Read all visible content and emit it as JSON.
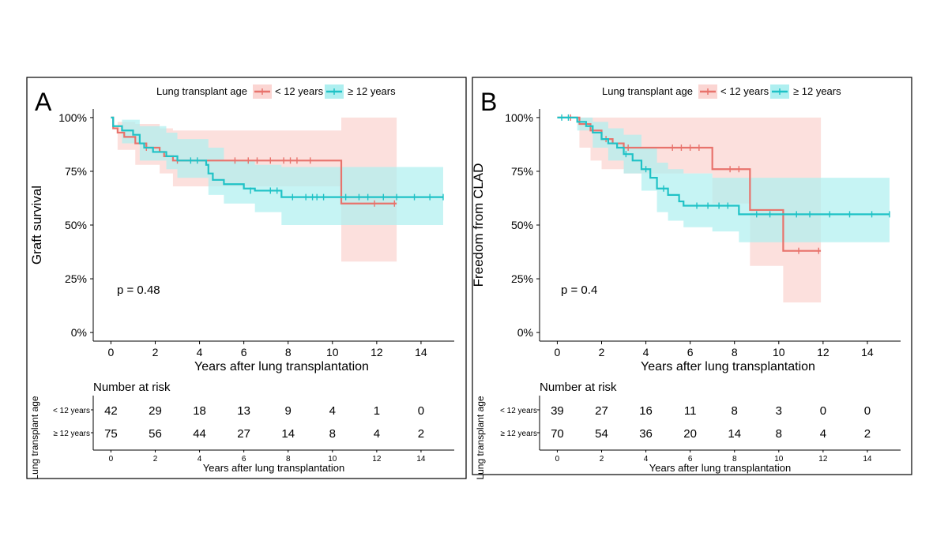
{
  "colors": {
    "lt12": "#e8736c",
    "lt12_band": "#fbd5d2",
    "ge12": "#1fc2c6",
    "ge12_band": "#aeeff0",
    "axis": "#000000"
  },
  "chart_data": [
    {
      "panel_label": "A",
      "type": "line",
      "subtype": "kaplan-meier",
      "legend_title": "Lung transplant age",
      "legend": [
        "< 12 years",
        "≥ 12 years"
      ],
      "ylabel": "Graft survival",
      "xlabel": "Years after lung transplantation",
      "xlim": [
        -0.8,
        15.5
      ],
      "ylim": [
        -0.04,
        1.04
      ],
      "xticks": [
        "0",
        "2",
        "4",
        "6",
        "8",
        "10",
        "12",
        "14"
      ],
      "xtick_values": [
        0,
        2,
        4,
        6,
        8,
        10,
        12,
        14
      ],
      "yticks": [
        "0%",
        "25%",
        "50%",
        "75%",
        "100%"
      ],
      "ytick_values": [
        0,
        0.25,
        0.5,
        0.75,
        1
      ],
      "pvalue": "p = 0.48",
      "series": [
        {
          "name": "< 12 years",
          "steps": [
            [
              0,
              1.0
            ],
            [
              0.1,
              0.95
            ],
            [
              0.3,
              0.93
            ],
            [
              0.6,
              0.91
            ],
            [
              1.1,
              0.88
            ],
            [
              1.6,
              0.86
            ],
            [
              2.2,
              0.84
            ],
            [
              2.4,
              0.82
            ],
            [
              2.8,
              0.8
            ],
            [
              10.4,
              0.6
            ],
            [
              12.9,
              0.6
            ]
          ],
          "censors": [
            [
              1.6,
              0.86
            ],
            [
              3.0,
              0.8
            ],
            [
              5.6,
              0.8
            ],
            [
              6.2,
              0.8
            ],
            [
              6.6,
              0.8
            ],
            [
              7.2,
              0.8
            ],
            [
              7.8,
              0.8
            ],
            [
              8.1,
              0.8
            ],
            [
              8.4,
              0.8
            ],
            [
              9.0,
              0.8
            ],
            [
              11.9,
              0.6
            ],
            [
              12.8,
              0.6
            ]
          ],
          "band": [
            [
              0,
              1.0,
              1.0
            ],
            [
              0.3,
              0.98,
              0.85
            ],
            [
              1.1,
              0.97,
              0.78
            ],
            [
              2.2,
              0.95,
              0.74
            ],
            [
              2.8,
              0.94,
              0.68
            ],
            [
              4.0,
              0.94,
              0.68
            ],
            [
              10.4,
              1.0,
              0.33
            ],
            [
              12.9,
              1.0,
              0.33
            ]
          ]
        },
        {
          "name": "≥ 12 years",
          "steps": [
            [
              0,
              1.0
            ],
            [
              0.1,
              0.96
            ],
            [
              0.5,
              0.94
            ],
            [
              1.0,
              0.92
            ],
            [
              1.3,
              0.88
            ],
            [
              1.5,
              0.86
            ],
            [
              1.9,
              0.84
            ],
            [
              2.5,
              0.82
            ],
            [
              3.0,
              0.8
            ],
            [
              4.3,
              0.78
            ],
            [
              4.4,
              0.74
            ],
            [
              4.6,
              0.71
            ],
            [
              5.1,
              0.69
            ],
            [
              6.0,
              0.67
            ],
            [
              6.5,
              0.66
            ],
            [
              7.7,
              0.63
            ],
            [
              15.0,
              0.63
            ]
          ],
          "censors": [
            [
              3.6,
              0.8
            ],
            [
              3.9,
              0.8
            ],
            [
              6.3,
              0.66
            ],
            [
              7.2,
              0.66
            ],
            [
              7.5,
              0.66
            ],
            [
              8.2,
              0.63
            ],
            [
              8.8,
              0.63
            ],
            [
              9.1,
              0.63
            ],
            [
              9.3,
              0.63
            ],
            [
              9.6,
              0.63
            ],
            [
              10.6,
              0.63
            ],
            [
              11.2,
              0.63
            ],
            [
              11.6,
              0.63
            ],
            [
              12.3,
              0.63
            ],
            [
              12.9,
              0.63
            ],
            [
              13.7,
              0.63
            ],
            [
              14.4,
              0.63
            ],
            [
              15.0,
              0.63
            ]
          ],
          "band": [
            [
              0,
              1.0,
              1.0
            ],
            [
              0.5,
              0.99,
              0.88
            ],
            [
              1.3,
              0.96,
              0.8
            ],
            [
              2.5,
              0.93,
              0.76
            ],
            [
              3.0,
              0.9,
              0.72
            ],
            [
              4.4,
              0.86,
              0.64
            ],
            [
              5.1,
              0.8,
              0.6
            ],
            [
              6.5,
              0.78,
              0.56
            ],
            [
              7.7,
              0.77,
              0.5
            ],
            [
              15.0,
              0.77,
              0.5
            ]
          ]
        }
      ],
      "risk_table": {
        "title": "Number at risk",
        "ylabel": "Lung transplant age",
        "xlabel": "Years after lung transplantation",
        "rows": [
          {
            "label": "< 12 years",
            "values": [
              "42",
              "29",
              "18",
              "13",
              "9",
              "4",
              "1",
              "0"
            ]
          },
          {
            "label": "≥ 12 years",
            "values": [
              "75",
              "56",
              "44",
              "27",
              "14",
              "8",
              "4",
              "2"
            ]
          }
        ]
      }
    },
    {
      "panel_label": "B",
      "type": "line",
      "subtype": "kaplan-meier",
      "legend_title": "Lung transplant age",
      "legend": [
        "< 12 years",
        "≥ 12 years"
      ],
      "ylabel": "Freedom from CLAD",
      "xlabel": "Years after lung transplantation",
      "xlim": [
        -0.8,
        15.5
      ],
      "ylim": [
        -0.04,
        1.04
      ],
      "xticks": [
        "0",
        "2",
        "4",
        "6",
        "8",
        "10",
        "12",
        "14"
      ],
      "xtick_values": [
        0,
        2,
        4,
        6,
        8,
        10,
        12,
        14
      ],
      "yticks": [
        "0%",
        "25%",
        "50%",
        "75%",
        "100%"
      ],
      "ytick_values": [
        0,
        0.25,
        0.5,
        0.75,
        1
      ],
      "pvalue": "p = 0.4",
      "series": [
        {
          "name": "< 12 years",
          "steps": [
            [
              0,
              1.0
            ],
            [
              1.0,
              0.97
            ],
            [
              1.5,
              0.94
            ],
            [
              2.0,
              0.9
            ],
            [
              2.5,
              0.88
            ],
            [
              3.0,
              0.86
            ],
            [
              7.0,
              0.76
            ],
            [
              8.7,
              0.57
            ],
            [
              10.2,
              0.38
            ],
            [
              11.9,
              0.38
            ]
          ],
          "censors": [
            [
              0.6,
              1.0
            ],
            [
              2.2,
              0.9
            ],
            [
              3.2,
              0.86
            ],
            [
              5.2,
              0.86
            ],
            [
              5.6,
              0.86
            ],
            [
              6.0,
              0.86
            ],
            [
              6.4,
              0.86
            ],
            [
              7.8,
              0.76
            ],
            [
              8.2,
              0.76
            ],
            [
              10.9,
              0.38
            ],
            [
              11.8,
              0.38
            ]
          ],
          "band": [
            [
              0,
              1.0,
              1.0
            ],
            [
              1.0,
              1.0,
              0.86
            ],
            [
              1.5,
              1.0,
              0.8
            ],
            [
              2.0,
              1.0,
              0.76
            ],
            [
              3.0,
              1.0,
              0.74
            ],
            [
              7.0,
              1.0,
              0.6
            ],
            [
              8.7,
              1.0,
              0.31
            ],
            [
              10.2,
              1.0,
              0.14
            ],
            [
              11.9,
              1.0,
              0.14
            ]
          ]
        },
        {
          "name": "≥ 12 years",
          "steps": [
            [
              0,
              1.0
            ],
            [
              0.9,
              0.98
            ],
            [
              1.3,
              0.96
            ],
            [
              1.6,
              0.93
            ],
            [
              2.0,
              0.9
            ],
            [
              2.3,
              0.88
            ],
            [
              2.7,
              0.86
            ],
            [
              3.0,
              0.83
            ],
            [
              3.4,
              0.8
            ],
            [
              3.8,
              0.76
            ],
            [
              4.2,
              0.72
            ],
            [
              4.5,
              0.67
            ],
            [
              5.0,
              0.64
            ],
            [
              5.5,
              0.61
            ],
            [
              5.7,
              0.59
            ],
            [
              8.2,
              0.55
            ],
            [
              15.0,
              0.55
            ]
          ],
          "censors": [
            [
              0.2,
              1.0
            ],
            [
              0.5,
              1.0
            ],
            [
              3.1,
              0.83
            ],
            [
              4.0,
              0.76
            ],
            [
              4.8,
              0.67
            ],
            [
              6.3,
              0.59
            ],
            [
              6.8,
              0.59
            ],
            [
              7.3,
              0.59
            ],
            [
              7.7,
              0.59
            ],
            [
              9.0,
              0.55
            ],
            [
              9.6,
              0.55
            ],
            [
              10.8,
              0.55
            ],
            [
              11.4,
              0.55
            ],
            [
              12.3,
              0.55
            ],
            [
              13.2,
              0.55
            ],
            [
              14.2,
              0.55
            ],
            [
              15.0,
              0.55
            ]
          ],
          "band": [
            [
              0,
              1.0,
              1.0
            ],
            [
              0.9,
              1.0,
              0.94
            ],
            [
              1.6,
              0.98,
              0.86
            ],
            [
              2.3,
              0.95,
              0.8
            ],
            [
              3.0,
              0.92,
              0.74
            ],
            [
              3.8,
              0.86,
              0.66
            ],
            [
              4.5,
              0.79,
              0.56
            ],
            [
              5.0,
              0.76,
              0.52
            ],
            [
              5.7,
              0.74,
              0.49
            ],
            [
              7.0,
              0.72,
              0.47
            ],
            [
              8.2,
              0.72,
              0.42
            ],
            [
              15.0,
              0.72,
              0.42
            ]
          ]
        }
      ],
      "risk_table": {
        "title": "Number at risk",
        "ylabel": "Lung transplant age",
        "xlabel": "Years after lung transplantation",
        "rows": [
          {
            "label": "< 12 years",
            "values": [
              "39",
              "27",
              "16",
              "11",
              "8",
              "3",
              "0",
              "0"
            ]
          },
          {
            "label": "≥ 12 years",
            "values": [
              "70",
              "54",
              "36",
              "20",
              "14",
              "8",
              "4",
              "2"
            ]
          }
        ]
      }
    }
  ]
}
